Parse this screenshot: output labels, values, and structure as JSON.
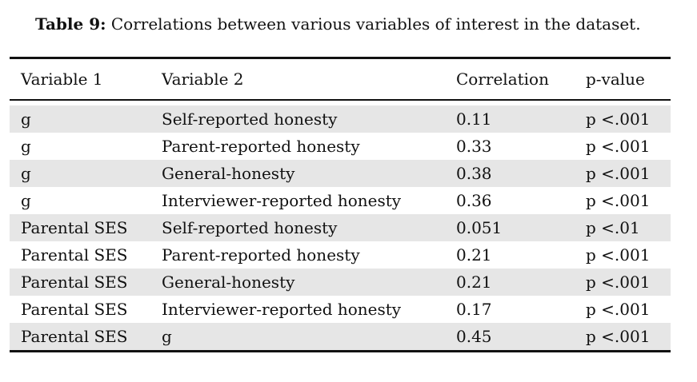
{
  "caption": {
    "label": "Table 9:",
    "text": "Correlations between various variables of interest in the dataset."
  },
  "table": {
    "headers": [
      "Variable 1",
      "Variable 2",
      "Correlation",
      "p-value"
    ],
    "rows": [
      [
        "g",
        "Self-reported honesty",
        "0.11",
        "p <.001"
      ],
      [
        "g",
        "Parent-reported honesty",
        "0.33",
        "p <.001"
      ],
      [
        "g",
        "General-honesty",
        "0.38",
        "p <.001"
      ],
      [
        "g",
        "Interviewer-reported honesty",
        "0.36",
        "p <.001"
      ],
      [
        "Parental SES",
        "Self-reported honesty",
        "0.051",
        "p <.01"
      ],
      [
        "Parental SES",
        "Parent-reported honesty",
        "0.21",
        "p <.001"
      ],
      [
        "Parental SES",
        "General-honesty",
        "0.21",
        "p <.001"
      ],
      [
        "Parental SES",
        "Interviewer-reported honesty",
        "0.17",
        "p <.001"
      ],
      [
        "Parental SES",
        "g",
        "0.45",
        "p <.001"
      ]
    ],
    "shading_color": "#e6e6e6"
  }
}
